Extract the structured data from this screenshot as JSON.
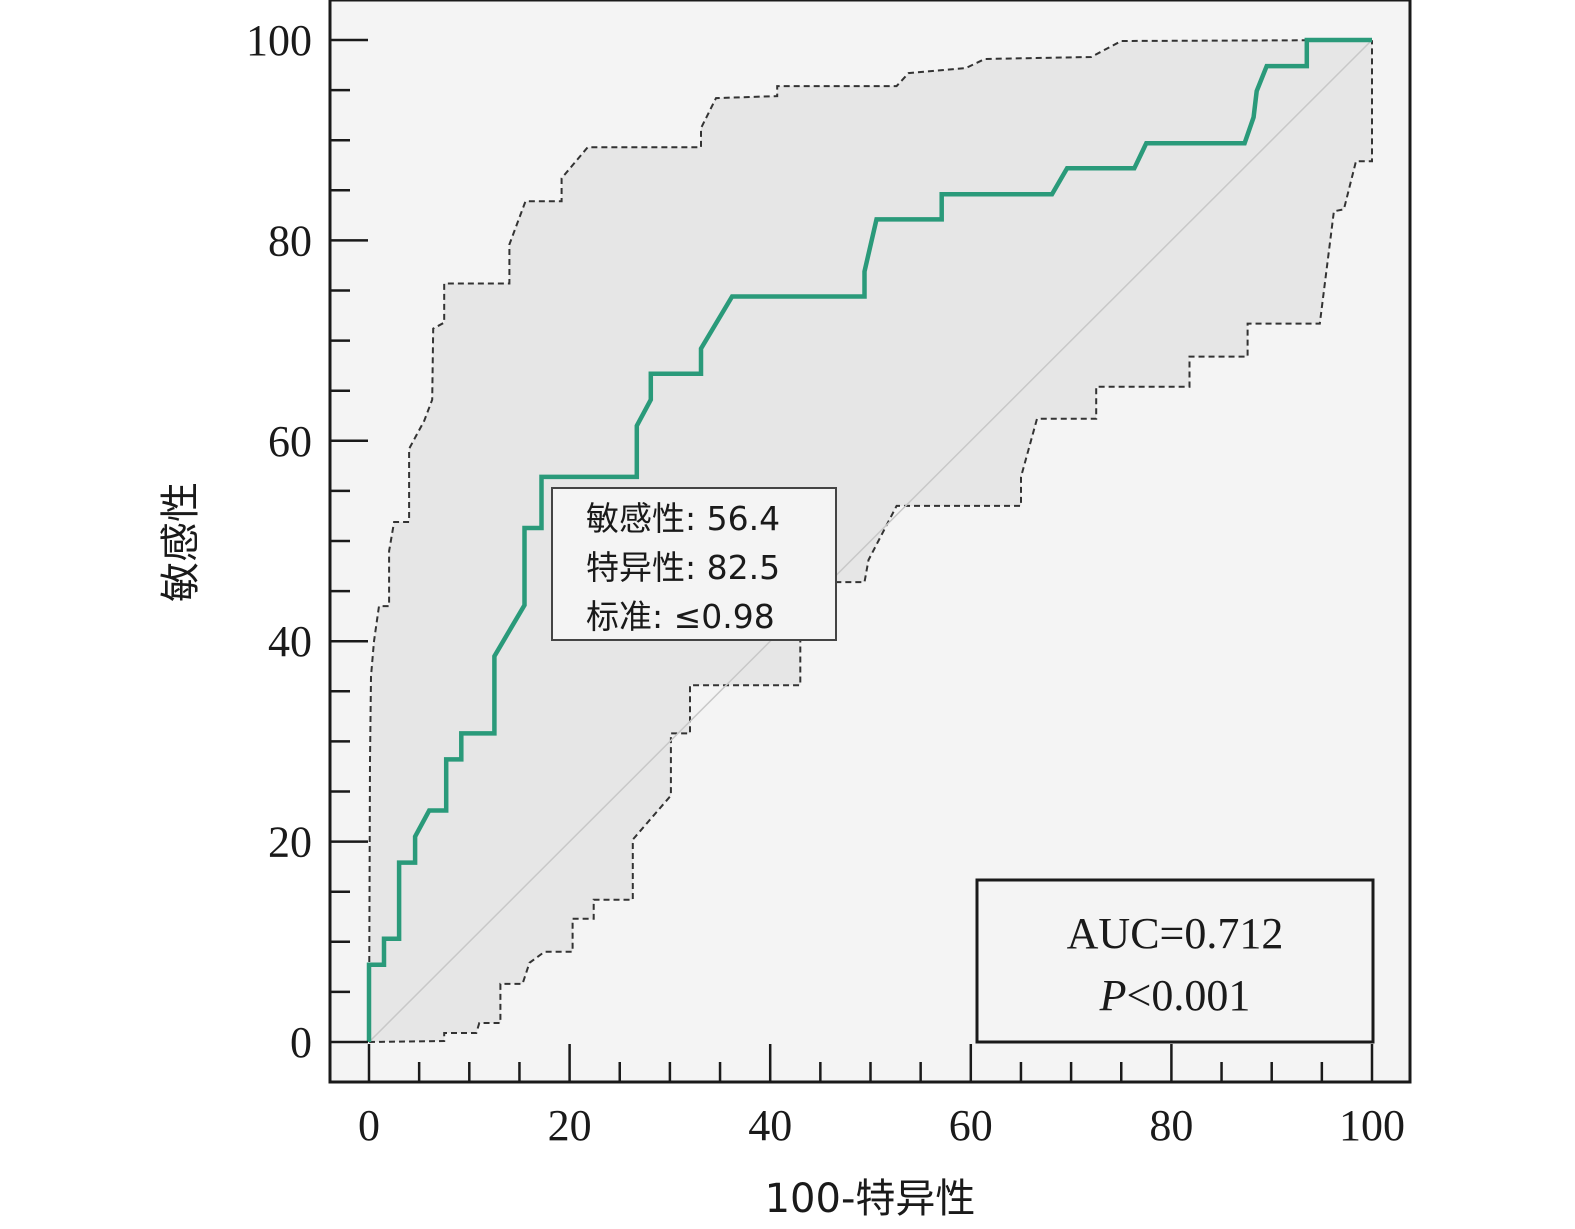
{
  "chart_data": {
    "type": "line",
    "xlabel": "100-特异性",
    "ylabel": "敏感性",
    "xlim": [
      0,
      100
    ],
    "ylim": [
      0,
      100
    ],
    "x_ticks": [
      "0",
      "20",
      "40",
      "60",
      "80",
      "100"
    ],
    "y_ticks": [
      "0",
      "20",
      "40",
      "60",
      "80",
      "100"
    ],
    "colors": {
      "roc": "#2a9a7a",
      "band_fill": "#e6e6e6",
      "band_edge": "#333333",
      "background": "#f4f4f4",
      "diagonal": "#c8c8c8"
    },
    "roc_curve": [
      [
        0,
        0
      ],
      [
        0,
        7.7
      ],
      [
        1.5,
        7.7
      ],
      [
        1.5,
        10.3
      ],
      [
        3,
        10.3
      ],
      [
        3,
        17.9
      ],
      [
        4.6,
        17.9
      ],
      [
        4.6,
        20.5
      ],
      [
        6,
        23.1
      ],
      [
        7.7,
        23.1
      ],
      [
        7.7,
        28.2
      ],
      [
        9.2,
        28.2
      ],
      [
        9.2,
        30.8
      ],
      [
        12.5,
        30.8
      ],
      [
        12.5,
        38.5
      ],
      [
        15.5,
        43.6
      ],
      [
        15.5,
        51.3
      ],
      [
        17.2,
        51.3
      ],
      [
        17.2,
        56.4
      ],
      [
        26.7,
        56.4
      ],
      [
        26.7,
        61.5
      ],
      [
        28.1,
        64.1
      ],
      [
        28.1,
        66.7
      ],
      [
        33.1,
        66.7
      ],
      [
        33.1,
        69.2
      ],
      [
        36.2,
        74.4
      ],
      [
        49.4,
        74.4
      ],
      [
        49.4,
        76.9
      ],
      [
        50.6,
        82.1
      ],
      [
        57.1,
        82.1
      ],
      [
        57.1,
        84.6
      ],
      [
        68.1,
        84.6
      ],
      [
        69.6,
        87.2
      ],
      [
        76.3,
        87.2
      ],
      [
        77.5,
        89.7
      ],
      [
        87.3,
        89.7
      ],
      [
        88.2,
        92.3
      ],
      [
        88.5,
        94.9
      ],
      [
        89.5,
        97.4
      ],
      [
        93.5,
        97.4
      ],
      [
        93.5,
        100
      ],
      [
        100,
        100
      ]
    ],
    "ci_upper": [
      [
        0,
        0
      ],
      [
        0.1,
        28
      ],
      [
        0.2,
        36.5
      ],
      [
        0.5,
        40
      ],
      [
        1,
        43.5
      ],
      [
        2,
        43.5
      ],
      [
        2,
        49
      ],
      [
        2.5,
        51.9
      ],
      [
        4,
        51.9
      ],
      [
        4,
        59.2
      ],
      [
        5.5,
        62
      ],
      [
        6.3,
        64.1
      ],
      [
        6.4,
        71.2
      ],
      [
        7.5,
        71.8
      ],
      [
        7.5,
        75.7
      ],
      [
        14,
        75.7
      ],
      [
        14,
        79.6
      ],
      [
        15.6,
        83.9
      ],
      [
        16.4,
        83.9
      ],
      [
        19.2,
        83.9
      ],
      [
        19.2,
        86.2
      ],
      [
        21.8,
        89.3
      ],
      [
        33.1,
        89.3
      ],
      [
        33.1,
        91.2
      ],
      [
        34.6,
        94.2
      ],
      [
        40.7,
        94.4
      ],
      [
        40.7,
        95.4
      ],
      [
        52.6,
        95.4
      ],
      [
        53.8,
        96.7
      ],
      [
        59.5,
        97.2
      ],
      [
        61.4,
        98.1
      ],
      [
        72,
        98.3
      ],
      [
        73.5,
        99.1
      ],
      [
        75,
        99.9
      ],
      [
        100,
        100
      ]
    ],
    "ci_lower": [
      [
        0,
        0
      ],
      [
        7.5,
        0.1
      ],
      [
        7.5,
        0.9
      ],
      [
        10.7,
        0.9
      ],
      [
        11,
        1.9
      ],
      [
        13.1,
        1.9
      ],
      [
        13.1,
        5.8
      ],
      [
        15.3,
        5.8
      ],
      [
        16,
        7.9
      ],
      [
        17.5,
        9
      ],
      [
        20.3,
        9
      ],
      [
        20.3,
        12.3
      ],
      [
        22.4,
        12.3
      ],
      [
        22.4,
        14.2
      ],
      [
        26.3,
        14.2
      ],
      [
        26.3,
        20.2
      ],
      [
        30.1,
        24.6
      ],
      [
        30.1,
        30.8
      ],
      [
        32,
        30.8
      ],
      [
        32,
        35.6
      ],
      [
        43,
        35.6
      ],
      [
        43,
        40.3
      ],
      [
        46.6,
        45.9
      ],
      [
        49.4,
        45.9
      ],
      [
        49.8,
        48.1
      ],
      [
        52.6,
        53.5
      ],
      [
        65,
        53.5
      ],
      [
        65,
        56.4
      ],
      [
        66.6,
        62.2
      ],
      [
        72.5,
        62.2
      ],
      [
        72.5,
        65.4
      ],
      [
        81.8,
        65.4
      ],
      [
        81.8,
        68.4
      ],
      [
        87.6,
        68.4
      ],
      [
        87.6,
        71.7
      ],
      [
        94.8,
        71.7
      ],
      [
        96.2,
        82.9
      ],
      [
        97.2,
        83.1
      ],
      [
        98.4,
        87.9
      ],
      [
        100,
        87.9
      ],
      [
        100,
        100
      ]
    ],
    "annotations": {
      "cutoff_box": [
        "敏感性: 56.4",
        "特异性: 82.5",
        "标准: ≤0.98"
      ],
      "auc_text": "AUC=0.712",
      "p_label": "P",
      "p_value": "<0.001"
    }
  }
}
